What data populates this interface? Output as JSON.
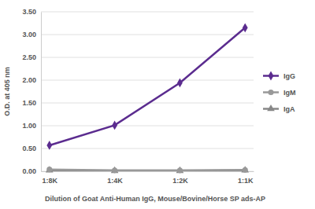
{
  "chart_data": {
    "type": "line",
    "x_label": "Dilution of Goat Anti-Human IgG, Mouse/Bovine/Horse SP ads-AP",
    "y_label": "O.D. at 405 nm",
    "categories": [
      "1:8K",
      "1:4K",
      "1:2K",
      "1:1K"
    ],
    "series": [
      {
        "name": "IgG",
        "color": "#5b2c8f",
        "marker": "diamond",
        "line_style": "solid",
        "values": [
          0.57,
          1.01,
          1.94,
          3.15
        ]
      },
      {
        "name": "IgM",
        "color": "#999999",
        "marker": "circle",
        "line_style": "solid",
        "values": [
          0.04,
          0.02,
          0.02,
          0.03
        ]
      },
      {
        "name": "IgA",
        "color": "#888888",
        "marker": "triangle",
        "line_style": "solid",
        "values": [
          0.02,
          0.01,
          0.01,
          0.02
        ]
      }
    ],
    "ylim": [
      0,
      3.5
    ],
    "yticks": [
      {
        "value": 0,
        "label": "0.00"
      },
      {
        "value": 0.5,
        "label": "0.50"
      },
      {
        "value": 1,
        "label": "1.00"
      },
      {
        "value": 1.5,
        "label": "1.50"
      },
      {
        "value": 2,
        "label": "2.00"
      },
      {
        "value": 2.5,
        "label": "2.50"
      },
      {
        "value": 3,
        "label": "3.00"
      },
      {
        "value": 3.5,
        "label": "3.50"
      }
    ],
    "grid": true,
    "legend": "right"
  }
}
